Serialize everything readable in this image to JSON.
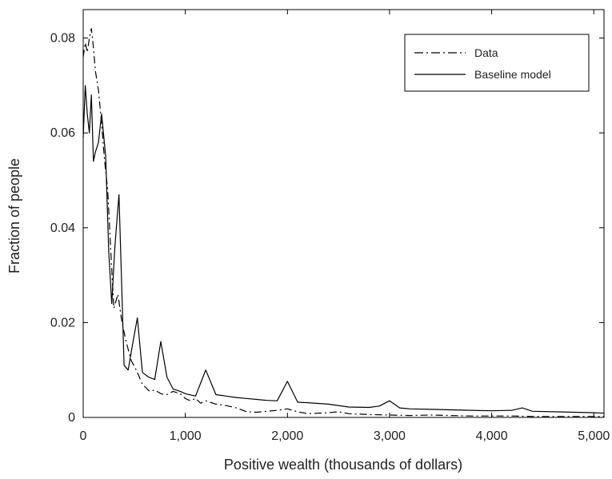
{
  "chart_data": {
    "type": "line",
    "xlabel": "Positive wealth (thousands of dollars)",
    "ylabel": "Fraction of people",
    "xlim": [
      0,
      5100
    ],
    "ylim": [
      0,
      0.086
    ],
    "x_ticks": [
      {
        "value": 0,
        "label": "0"
      },
      {
        "value": 1000,
        "label": "1,000"
      },
      {
        "value": 2000,
        "label": "2,000"
      },
      {
        "value": 3000,
        "label": "3,000"
      },
      {
        "value": 4000,
        "label": "4,000"
      },
      {
        "value": 5000,
        "label": "5,000"
      }
    ],
    "y_ticks": [
      {
        "value": 0,
        "label": "0"
      },
      {
        "value": 0.02,
        "label": "0.02"
      },
      {
        "value": 0.04,
        "label": "0.04"
      },
      {
        "value": 0.06,
        "label": "0.06"
      },
      {
        "value": 0.08,
        "label": "0.08"
      }
    ],
    "grid": false,
    "legend_position": "top-right",
    "series": [
      {
        "name": "Data",
        "style": "dashdot",
        "color": "#000000",
        "x": [
          0,
          20,
          40,
          60,
          80,
          100,
          120,
          150,
          180,
          210,
          240,
          270,
          300,
          340,
          380,
          420,
          470,
          520,
          580,
          650,
          700,
          760,
          820,
          880,
          950,
          1000,
          1050,
          1100,
          1150,
          1200,
          1300,
          1400,
          1500,
          1600,
          1700,
          1800,
          1900,
          2000,
          2100,
          2200,
          2400,
          2500,
          2600,
          2800,
          3000,
          3200,
          3400,
          3600,
          3800,
          4000,
          4200,
          4400,
          4600,
          4800,
          5000,
          5100
        ],
        "y": [
          0.076,
          0.079,
          0.077,
          0.08,
          0.082,
          0.078,
          0.073,
          0.069,
          0.062,
          0.054,
          0.048,
          0.035,
          0.023,
          0.026,
          0.02,
          0.016,
          0.012,
          0.01,
          0.007,
          0.0055,
          0.0058,
          0.005,
          0.0048,
          0.0055,
          0.005,
          0.004,
          0.0035,
          0.004,
          0.003,
          0.0035,
          0.0028,
          0.0025,
          0.002,
          0.0012,
          0.0011,
          0.0013,
          0.0015,
          0.0018,
          0.0012,
          0.0008,
          0.001,
          0.0012,
          0.0008,
          0.0006,
          0.0005,
          0.0004,
          0.0005,
          0.0004,
          0.0003,
          0.0003,
          0.0003,
          0.0002,
          0.0002,
          0.0002,
          0.0002,
          0.0002
        ]
      },
      {
        "name": "Baseline model",
        "style": "solid",
        "color": "#000000",
        "x": [
          0,
          20,
          40,
          60,
          80,
          100,
          120,
          150,
          180,
          220,
          250,
          280,
          310,
          350,
          400,
          440,
          480,
          530,
          580,
          640,
          700,
          760,
          820,
          880,
          950,
          1000,
          1100,
          1200,
          1300,
          1400,
          1500,
          1600,
          1700,
          1800,
          1900,
          2000,
          2100,
          2200,
          2400,
          2600,
          2800,
          2900,
          3000,
          3100,
          3200,
          3400,
          3600,
          3800,
          4000,
          4200,
          4300,
          4400,
          4600,
          4800,
          5000,
          5100
        ],
        "y": [
          0.059,
          0.07,
          0.064,
          0.06,
          0.068,
          0.054,
          0.056,
          0.058,
          0.064,
          0.055,
          0.035,
          0.024,
          0.036,
          0.047,
          0.011,
          0.01,
          0.015,
          0.021,
          0.0095,
          0.0085,
          0.008,
          0.016,
          0.0085,
          0.006,
          0.0055,
          0.005,
          0.0045,
          0.01,
          0.0048,
          0.0045,
          0.0042,
          0.004,
          0.0038,
          0.0036,
          0.0035,
          0.0076,
          0.0032,
          0.0031,
          0.0028,
          0.0022,
          0.0021,
          0.0024,
          0.0035,
          0.002,
          0.0018,
          0.0017,
          0.0016,
          0.0015,
          0.0014,
          0.0015,
          0.002,
          0.0013,
          0.0012,
          0.0011,
          0.001,
          0.0009
        ]
      }
    ]
  }
}
